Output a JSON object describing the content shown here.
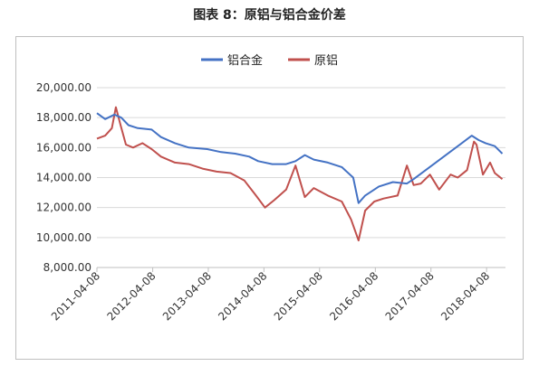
{
  "title": "图表 8：原铝与铝合金价差",
  "chart_data": {
    "type": "line",
    "ylim": [
      8000,
      20000
    ],
    "yticks": [
      "8,000.00",
      "10,000.00",
      "12,000.00",
      "14,000.00",
      "16,000.00",
      "18,000.00",
      "20,000.00"
    ],
    "ytick_values": [
      8000,
      10000,
      12000,
      14000,
      16000,
      18000,
      20000
    ],
    "xticks": [
      "2011-04-08",
      "2012-04-08",
      "2013-04-08",
      "2014-04-08",
      "2015-04-08",
      "2016-04-08",
      "2017-04-08",
      "2018-04-08"
    ],
    "legend_position": "top-center",
    "grid": "horizontal",
    "series": [
      {
        "name": "铝合金",
        "color": "#4472c4",
        "x": [
          "2011-04-08",
          "2011-06-01",
          "2011-08-01",
          "2011-09-15",
          "2011-11-01",
          "2012-01-01",
          "2012-04-01",
          "2012-06-01",
          "2012-09-01",
          "2012-12-01",
          "2013-04-01",
          "2013-07-01",
          "2013-10-01",
          "2014-01-01",
          "2014-03-01",
          "2014-06-01",
          "2014-09-01",
          "2014-11-01",
          "2015-01-01",
          "2015-03-01",
          "2015-06-01",
          "2015-09-01",
          "2015-11-15",
          "2015-12-20",
          "2016-02-01",
          "2016-05-01",
          "2016-08-01",
          "2016-11-01",
          "2016-12-15",
          "2018-01-01",
          "2018-02-15",
          "2018-04-01",
          "2018-06-01",
          "2018-07-20"
        ],
        "values": [
          18300,
          17900,
          18200,
          18000,
          17500,
          17300,
          17200,
          16700,
          16300,
          16000,
          15900,
          15700,
          15600,
          15400,
          15100,
          14900,
          14900,
          15100,
          15500,
          15200,
          15000,
          14700,
          14000,
          12300,
          12800,
          13400,
          13700,
          13600,
          13900,
          16800,
          16500,
          16300,
          16100,
          15600
        ]
      },
      {
        "name": "原铝",
        "color": "#c0504d",
        "x": [
          "2011-04-08",
          "2011-06-01",
          "2011-07-15",
          "2011-08-10",
          "2011-09-10",
          "2011-10-15",
          "2011-12-01",
          "2012-02-01",
          "2012-04-01",
          "2012-06-01",
          "2012-09-01",
          "2012-12-01",
          "2013-03-01",
          "2013-06-01",
          "2013-09-01",
          "2013-12-01",
          "2014-02-15",
          "2014-04-15",
          "2014-06-15",
          "2014-09-01",
          "2014-11-01",
          "2015-01-01",
          "2015-03-01",
          "2015-06-01",
          "2015-09-01",
          "2015-11-01",
          "2015-12-20",
          "2016-02-01",
          "2016-04-01",
          "2016-06-01",
          "2016-09-01",
          "2016-11-01",
          "2016-12-15",
          "2017-02-01",
          "2017-04-01",
          "2017-06-01",
          "2017-08-15",
          "2017-10-01",
          "2017-12-01",
          "2018-01-15",
          "2018-02-01",
          "2018-03-15",
          "2018-05-01",
          "2018-06-01",
          "2018-07-20"
        ],
        "values": [
          16600,
          16800,
          17300,
          18700,
          17500,
          16200,
          16000,
          16300,
          15900,
          15400,
          15000,
          14900,
          14600,
          14400,
          14300,
          13800,
          12800,
          12000,
          12500,
          13200,
          14800,
          12700,
          13300,
          12800,
          12400,
          11200,
          9800,
          11800,
          12400,
          12600,
          12800,
          14800,
          13500,
          13600,
          14200,
          13200,
          14200,
          14000,
          14500,
          16400,
          16200,
          14200,
          15000,
          14300,
          13900
        ]
      }
    ]
  }
}
